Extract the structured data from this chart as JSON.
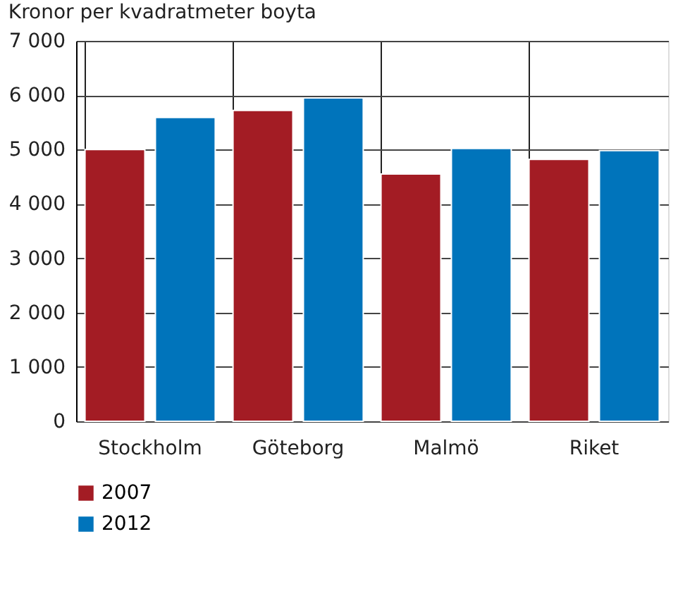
{
  "chart_data": {
    "type": "bar",
    "title": "Kronor per kvadratmeter boyta",
    "categories": [
      "Stockholm",
      "Göteborg",
      "Malmö",
      "Riket"
    ],
    "series": [
      {
        "name": "2007",
        "color": "#a31c24",
        "values": [
          5000,
          5720,
          4550,
          4820
        ]
      },
      {
        "name": "2012",
        "color": "#0074bb",
        "values": [
          5590,
          5950,
          5020,
          4980
        ]
      }
    ],
    "ylim": [
      0,
      7000
    ],
    "yticks": [
      {
        "value": 0,
        "label": "0"
      },
      {
        "value": 1000,
        "label": "1 000"
      },
      {
        "value": 2000,
        "label": "2 000"
      },
      {
        "value": 3000,
        "label": "3 000"
      },
      {
        "value": 4000,
        "label": "4 000"
      },
      {
        "value": 5000,
        "label": "5 000"
      },
      {
        "value": 6000,
        "label": "6 000"
      },
      {
        "value": 7000,
        "label": "7 000"
      }
    ],
    "grid": true,
    "legend": "bottom left"
  }
}
